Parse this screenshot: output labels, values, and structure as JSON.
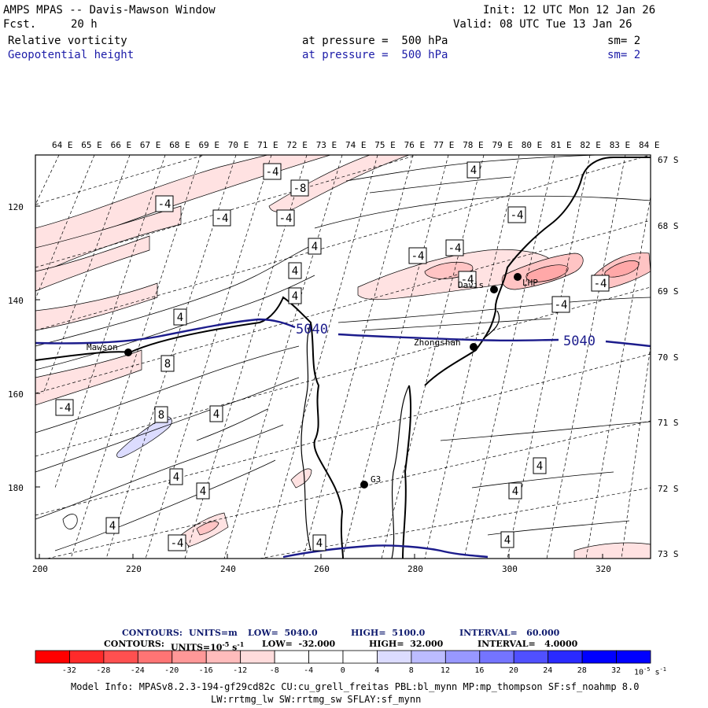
{
  "header": {
    "title": "AMPS MPAS -- Davis-Mawson Window",
    "fcst_label": "Fcst.",
    "fcst_value": "20 h",
    "init": "Init: 12 UTC Mon 12 Jan 26",
    "valid": "Valid: 08 UTC Tue 13 Jan 26",
    "field1": {
      "name": "Relative vorticity",
      "level": "at pressure =  500 hPa",
      "sm": "sm= 2"
    },
    "field2": {
      "name": "Geopotential height",
      "level": "at pressure =  500 hPa",
      "sm": "sm= 2"
    }
  },
  "map": {
    "top_lon_labels": [
      "64 E",
      "65 E",
      "66 E",
      "67 E",
      "68 E",
      "69 E",
      "70 E",
      "71 E",
      "72 E",
      "73 E",
      "74 E",
      "75 E",
      "76 E",
      "77 E",
      "78 E",
      "79 E",
      "80 E",
      "81 E",
      "82 E",
      "83 E",
      "84 E"
    ],
    "right_lat_labels": [
      "67 S",
      "68 S",
      "69 S",
      "70 S",
      "71 S",
      "72 S",
      "73 S"
    ],
    "left_grid_labels": [
      "120",
      "140",
      "160",
      "180"
    ],
    "bottom_grid_labels": [
      "200",
      "220",
      "240",
      "260",
      "280",
      "300",
      "320"
    ],
    "stations": [
      {
        "name": "Mawson"
      },
      {
        "name": "Davis"
      },
      {
        "name": "Zhongshan"
      },
      {
        "name": "G3"
      },
      {
        "name": "LHP"
      }
    ],
    "height_contour_labels": [
      "5040",
      "5040"
    ],
    "vorticity_labels": [
      "-4",
      "-8",
      "-4",
      "-4",
      "-4",
      "4",
      "4",
      "4",
      "4",
      "4",
      "-4",
      "-4",
      "8",
      "-4",
      "-4",
      "4",
      "8",
      "-4",
      "4",
      "-4",
      "4",
      "4",
      "4",
      "4",
      "4",
      "4",
      "-4",
      "4",
      "-4",
      "4",
      "4"
    ]
  },
  "legend": {
    "line1": {
      "contours": "CONTOURS:",
      "units": "UNITS=m",
      "low": "LOW=  5040.0",
      "high": "HIGH=  5100.0",
      "interval": "INTERVAL=   60.000"
    },
    "line2": {
      "contours": "CONTOURS:",
      "units": "UNITS=10",
      "units_exp": "-5",
      "units_tail": " s",
      "units_tail_exp": "-1",
      "low": "LOW=  -32.000",
      "high": "HIGH=  32.000",
      "interval": "INTERVAL=   4.0000"
    },
    "colorbar_values": [
      "-32",
      "-28",
      "-24",
      "-20",
      "-16",
      "-12",
      "-8",
      "-4",
      "0",
      "4",
      "8",
      "12",
      "16",
      "20",
      "24",
      "28",
      "32"
    ],
    "colorbar_unit": "10",
    "colorbar_unit_exp": "-5",
    "colorbar_unit_tail": " s",
    "colorbar_unit_tail_exp": "-1",
    "colors": [
      "#ff0000",
      "#ff2a2a",
      "#ff5050",
      "#ff7474",
      "#ff9898",
      "#ffbcbc",
      "#ffdcdc",
      "#ffffff",
      "#ffffff",
      "#ffffff",
      "#dcdcff",
      "#bcbcff",
      "#9898ff",
      "#7474ff",
      "#5050ff",
      "#2a2aff",
      "#0000ff"
    ]
  },
  "footer": {
    "line1": "Model Info: MPASv8.2.3-194-gf29cd82c CU:cu_grell_freitas PBL:bl_mynn MP:mp_thompson SF:sf_noahmp 8.0",
    "line2": "LW:rrtmg_lw SW:rrtmg_sw SFLAY:sf_mynn"
  }
}
